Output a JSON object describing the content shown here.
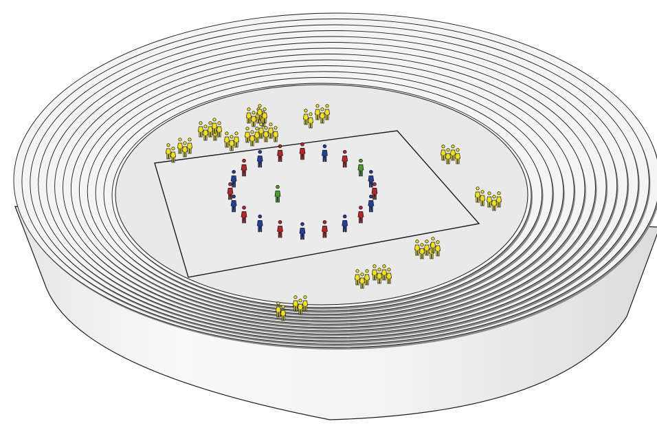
{
  "scene": {
    "kind": "3d-stadium-model",
    "colors": {
      "background": "#ffffff",
      "outline": "#1a1a1a",
      "tier_face": "#f4f4f4",
      "tier_shadow": "#8a8a8a",
      "floor": "#e9e9e9",
      "wall_light": "#f7f7f7",
      "wall_dark": "#d6d6d6"
    }
  },
  "figures": {
    "colors": {
      "red": "#b5252a",
      "blue": "#233f9c",
      "green": "#4f9a2e",
      "yellow": "#f2e21a"
    },
    "circle": [
      {
        "c": "red"
      },
      {
        "c": "blue"
      },
      {
        "c": "red"
      },
      {
        "c": "green"
      },
      {
        "c": "blue"
      },
      {
        "c": "red"
      },
      {
        "c": "blue"
      },
      {
        "c": "red"
      },
      {
        "c": "blue"
      },
      {
        "c": "red"
      },
      {
        "c": "blue"
      },
      {
        "c": "red"
      },
      {
        "c": "blue"
      },
      {
        "c": "red"
      },
      {
        "c": "blue"
      },
      {
        "c": "red"
      },
      {
        "c": "blue"
      },
      {
        "c": "red"
      },
      {
        "c": "blue"
      },
      {
        "c": "red"
      }
    ],
    "center_figure": {
      "c": "green"
    },
    "spectator_groups": 12
  }
}
